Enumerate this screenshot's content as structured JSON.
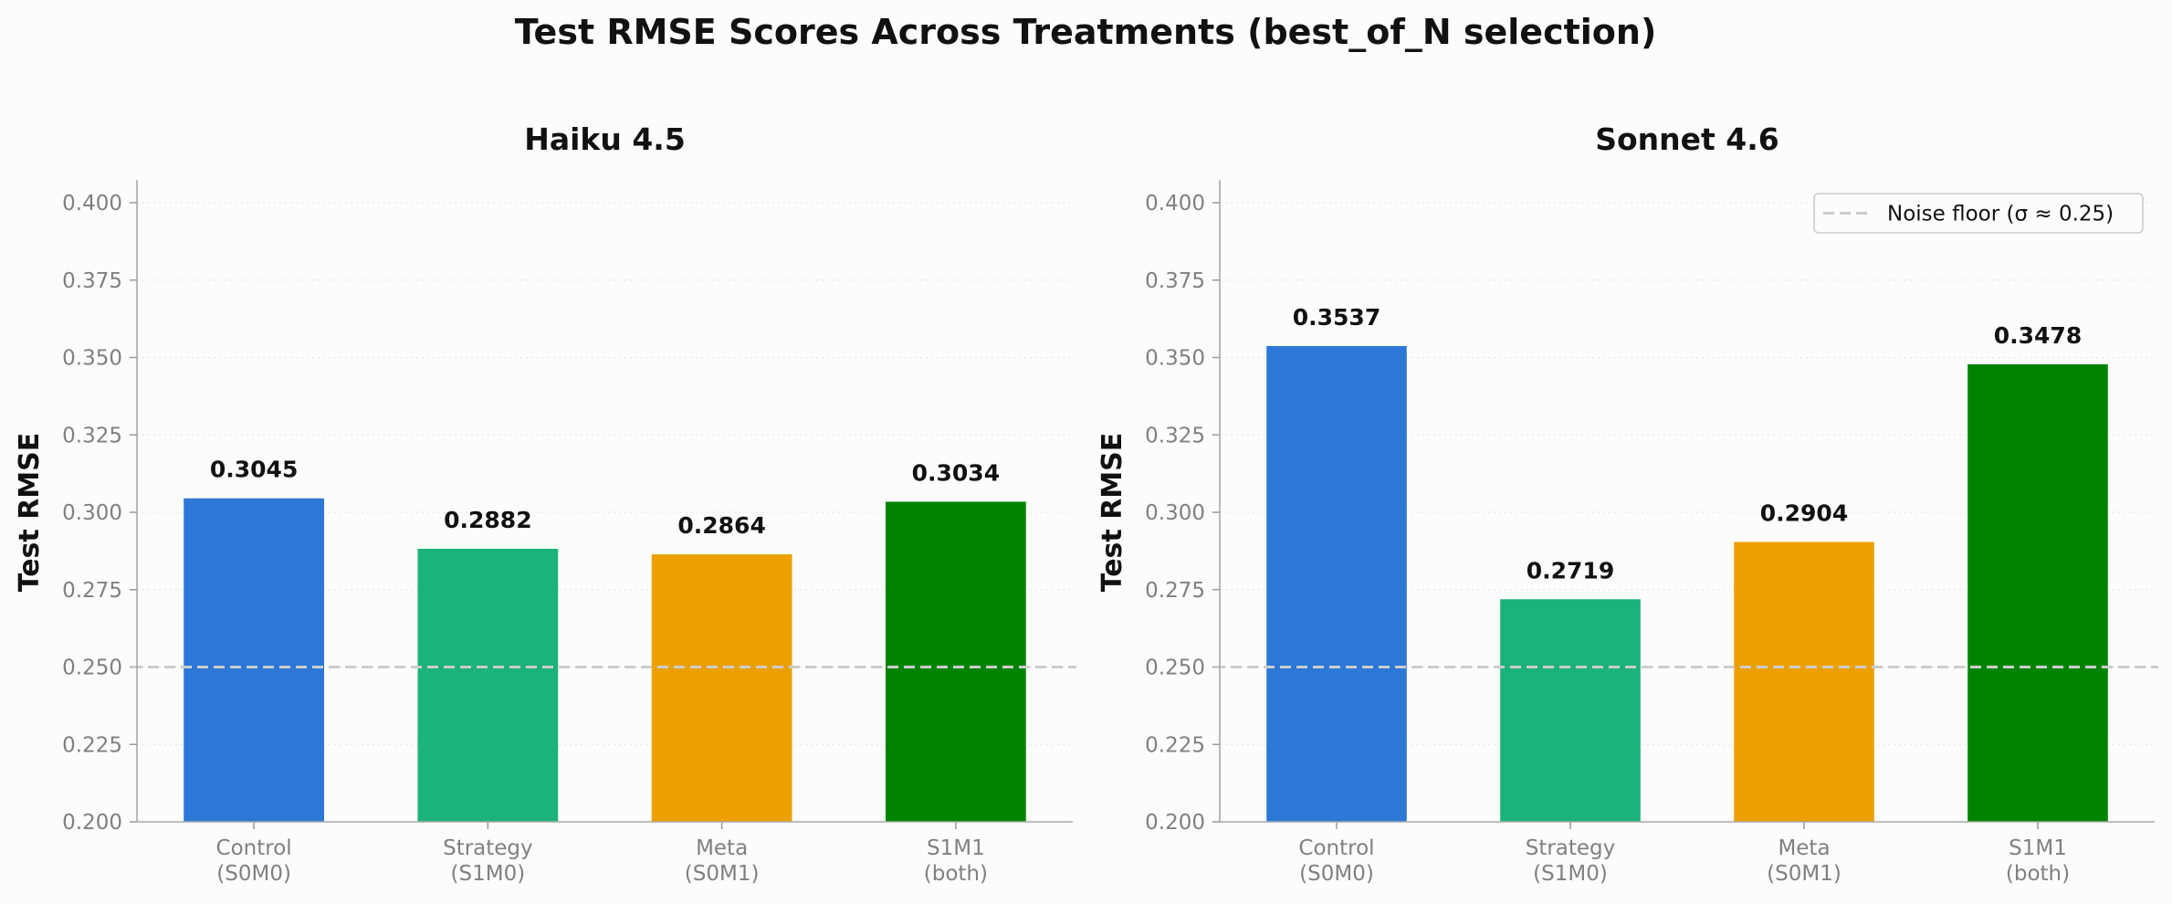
{
  "figure": {
    "title": "Test RMSE Scores Across Treatments (best_of_N selection)"
  },
  "chart_data": [
    {
      "type": "bar",
      "title": "Haiku 4.5",
      "xlabel": "",
      "ylabel": "Test RMSE",
      "categories": [
        "Control\n(S0M0)",
        "Strategy\n(S1M0)",
        "Meta\n(S0M1)",
        "S1M1\n(both)"
      ],
      "values": [
        0.3045,
        0.2882,
        0.2864,
        0.3034
      ],
      "value_labels": [
        "0.3045",
        "0.2882",
        "0.2864",
        "0.3034"
      ],
      "colors": [
        "#2b78d6",
        "#1bb27b",
        "#eca000",
        "#008400"
      ],
      "ylim": [
        0.2,
        0.4
      ],
      "yticks": [
        0.2,
        0.225,
        0.25,
        0.275,
        0.3,
        0.325,
        0.35,
        0.375,
        0.4
      ],
      "ytick_labels": [
        "0.200",
        "0.225",
        "0.250",
        "0.275",
        "0.300",
        "0.325",
        "0.350",
        "0.375",
        "0.400"
      ],
      "grid": "y-dotted",
      "reference_line": {
        "value": 0.25,
        "style": "dashed",
        "color": "#cccccc"
      },
      "legend": null
    },
    {
      "type": "bar",
      "title": "Sonnet 4.6",
      "xlabel": "",
      "ylabel": "Test RMSE",
      "categories": [
        "Control\n(S0M0)",
        "Strategy\n(S1M0)",
        "Meta\n(S0M1)",
        "S1M1\n(both)"
      ],
      "values": [
        0.3537,
        0.2719,
        0.2904,
        0.3478
      ],
      "value_labels": [
        "0.3537",
        "0.2719",
        "0.2904",
        "0.3478"
      ],
      "colors": [
        "#2b78d6",
        "#1bb27b",
        "#eca000",
        "#008400"
      ],
      "ylim": [
        0.2,
        0.4
      ],
      "yticks": [
        0.2,
        0.225,
        0.25,
        0.275,
        0.3,
        0.325,
        0.35,
        0.375,
        0.4
      ],
      "ytick_labels": [
        "0.200",
        "0.225",
        "0.250",
        "0.275",
        "0.300",
        "0.325",
        "0.350",
        "0.375",
        "0.400"
      ],
      "grid": "y-dotted",
      "reference_line": {
        "value": 0.25,
        "style": "dashed",
        "color": "#cccccc"
      },
      "legend": {
        "label": "Noise floor (σ ≈ 0.25)",
        "placement": "top-right"
      }
    }
  ]
}
